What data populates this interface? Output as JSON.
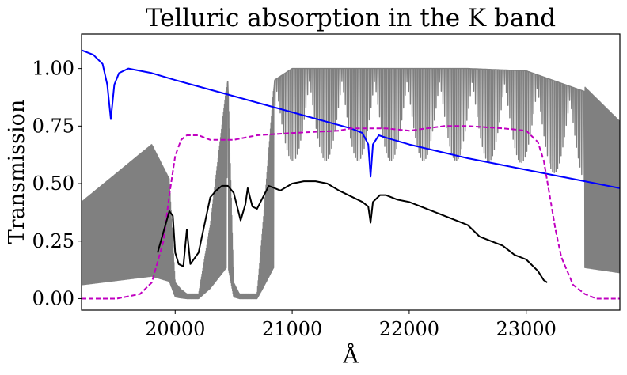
{
  "chart_data": {
    "type": "line",
    "title": "Telluric absorption in the K band",
    "xlabel": "Å",
    "ylabel": "Transmission",
    "xlim": [
      19200,
      23800
    ],
    "ylim": [
      -0.05,
      1.15
    ],
    "xticks": [
      20000,
      21000,
      22000,
      23000
    ],
    "yticks": [
      0.0,
      0.25,
      0.5,
      0.75,
      1.0
    ],
    "xtick_labels": [
      "20000",
      "21000",
      "22000",
      "23000"
    ],
    "ytick_labels": [
      "0.00",
      "0.25",
      "0.50",
      "0.75",
      "1.00"
    ],
    "grid": false,
    "legend": "none",
    "series": [
      {
        "style": "telluric-absorption",
        "color": "#808080",
        "x": [
          19200,
          19800,
          19950,
          20000,
          20050,
          20100,
          20200,
          20300,
          20450,
          20500,
          20550,
          20600,
          20650,
          20700,
          20750,
          20850,
          21000,
          21500,
          22000,
          22500,
          23000,
          23500,
          23800
        ],
        "y": [
          0.4,
          0.65,
          0.5,
          0.05,
          0.02,
          0.0,
          0.0,
          0.3,
          0.95,
          0.05,
          0.0,
          0.0,
          0.0,
          0.0,
          0.3,
          0.95,
          1.0,
          1.0,
          1.0,
          1.0,
          0.99,
          0.9,
          0.75
        ]
      },
      {
        "style": "solid",
        "color": "#0000ff",
        "x": [
          19200,
          19300,
          19380,
          19420,
          19450,
          19480,
          19520,
          19600,
          19800,
          20000,
          20500,
          21000,
          21500,
          21600,
          21650,
          21670,
          21690,
          21740,
          21800,
          22000,
          22500,
          23000,
          23500,
          23800
        ],
        "y": [
          1.08,
          1.06,
          1.02,
          0.93,
          0.78,
          0.93,
          0.98,
          1.0,
          0.98,
          0.95,
          0.88,
          0.81,
          0.74,
          0.72,
          0.67,
          0.53,
          0.67,
          0.71,
          0.7,
          0.67,
          0.61,
          0.56,
          0.51,
          0.48
        ]
      },
      {
        "style": "dashed",
        "color": "#c000c0",
        "x": [
          19200,
          19500,
          19700,
          19800,
          19900,
          19950,
          20000,
          20050,
          20100,
          20200,
          20300,
          20500,
          20700,
          21000,
          21400,
          21500,
          21800,
          22000,
          22300,
          22500,
          22800,
          23000,
          23100,
          23150,
          23200,
          23250,
          23300,
          23400,
          23500,
          23600,
          23800
        ],
        "y": [
          0.0,
          0.0,
          0.02,
          0.07,
          0.25,
          0.45,
          0.62,
          0.69,
          0.71,
          0.71,
          0.69,
          0.69,
          0.71,
          0.72,
          0.73,
          0.74,
          0.74,
          0.73,
          0.75,
          0.75,
          0.74,
          0.73,
          0.68,
          0.6,
          0.45,
          0.3,
          0.18,
          0.06,
          0.02,
          0.0,
          0.0
        ]
      },
      {
        "style": "solid",
        "color": "#000000",
        "x": [
          19850,
          19950,
          19980,
          20000,
          20030,
          20070,
          20100,
          20130,
          20200,
          20300,
          20350,
          20400,
          20450,
          20500,
          20560,
          20600,
          20620,
          20660,
          20700,
          20800,
          20900,
          21000,
          21100,
          21200,
          21300,
          21400,
          21600,
          21650,
          21670,
          21690,
          21750,
          21800,
          21900,
          22000,
          22200,
          22400,
          22500,
          22600,
          22700,
          22800,
          22900,
          23000,
          23100,
          23150,
          23180
        ],
        "y": [
          0.2,
          0.38,
          0.36,
          0.2,
          0.15,
          0.14,
          0.3,
          0.15,
          0.2,
          0.44,
          0.47,
          0.49,
          0.49,
          0.46,
          0.34,
          0.41,
          0.48,
          0.4,
          0.39,
          0.49,
          0.47,
          0.5,
          0.51,
          0.51,
          0.5,
          0.47,
          0.42,
          0.4,
          0.33,
          0.42,
          0.45,
          0.45,
          0.43,
          0.42,
          0.38,
          0.34,
          0.32,
          0.27,
          0.25,
          0.23,
          0.19,
          0.17,
          0.12,
          0.08,
          0.07
        ]
      }
    ]
  }
}
